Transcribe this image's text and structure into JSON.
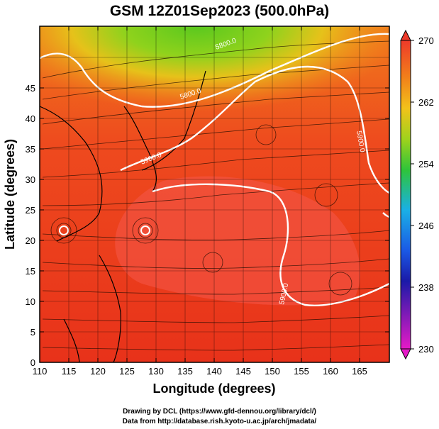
{
  "title": "GSM 12Z01Sep2023 (500.0hPa)",
  "x_axis": {
    "label": "Longitude (degrees)",
    "ticks": [
      "110",
      "115",
      "120",
      "125",
      "130",
      "135",
      "140",
      "145",
      "150",
      "155",
      "160",
      "165"
    ]
  },
  "y_axis": {
    "label": "Latitude  (degrees)",
    "ticks": [
      "0",
      "5",
      "10",
      "15",
      "20",
      "25",
      "30",
      "35",
      "40",
      "45"
    ]
  },
  "colorbar": {
    "labels": [
      "270",
      "262",
      "254",
      "246",
      "238",
      "230"
    ],
    "range": [
      230,
      270
    ]
  },
  "contours": [
    {
      "label": "5800.0"
    },
    {
      "label": "5900.0"
    },
    {
      "label": "5900.0"
    },
    {
      "label": "5900.0"
    },
    {
      "label": "5800.0"
    }
  ],
  "credits": [
    "Drawing by DCL (https://www.gfd-dennou.org/library/dcl/)",
    "Data from http://database.rish.kyoto-u.ac.jp/arch/jmadata/"
  ],
  "colors": {
    "warm": "#ee3a1c",
    "hot": "#f25a4a",
    "orange": "#f57a1a",
    "yellow": "#f2c21a",
    "green": "#6ccc1c",
    "contour": "#ffffff"
  }
}
